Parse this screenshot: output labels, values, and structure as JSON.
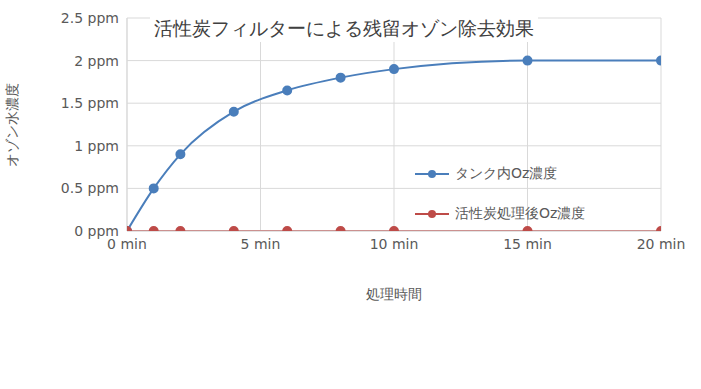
{
  "chart_data": {
    "type": "line",
    "title": "活性炭フィルターによる残留オゾン除去効果",
    "x_label": "処理時間",
    "y_label": "オゾン水濃度",
    "x": [
      0,
      1,
      2,
      4,
      6,
      8,
      10,
      15,
      20
    ],
    "series": [
      {
        "name": "タンク内Oz濃度",
        "color": "#4a7ebb",
        "marker": "circle",
        "line_style": "solid",
        "values": [
          0,
          0.5,
          0.9,
          1.4,
          1.65,
          1.8,
          1.9,
          2.0,
          2.0
        ]
      },
      {
        "name": "活性炭処理後Oz濃度",
        "color": "#be4b48",
        "marker": "circle",
        "line_style": "solid",
        "values": [
          0,
          0,
          0,
          0,
          0,
          0,
          0,
          0,
          0
        ]
      }
    ],
    "xlim": [
      0,
      20
    ],
    "xticks": [
      {
        "value": 0,
        "label": "0 min"
      },
      {
        "value": 5,
        "label": "5 min"
      },
      {
        "value": 10,
        "label": "10 min"
      },
      {
        "value": 15,
        "label": "15 min"
      },
      {
        "value": 20,
        "label": "20 min"
      }
    ],
    "ylim": [
      0,
      2.5
    ],
    "yticks": [
      {
        "value": 0,
        "label": "0 ppm"
      },
      {
        "value": 0.5,
        "label": "0.5 ppm"
      },
      {
        "value": 1,
        "label": "1 ppm"
      },
      {
        "value": 1.5,
        "label": "1.5 ppm"
      },
      {
        "value": 2,
        "label": "2 ppm"
      },
      {
        "value": 2.5,
        "label": "2.5 ppm"
      }
    ],
    "grid": true,
    "legend": "right"
  }
}
